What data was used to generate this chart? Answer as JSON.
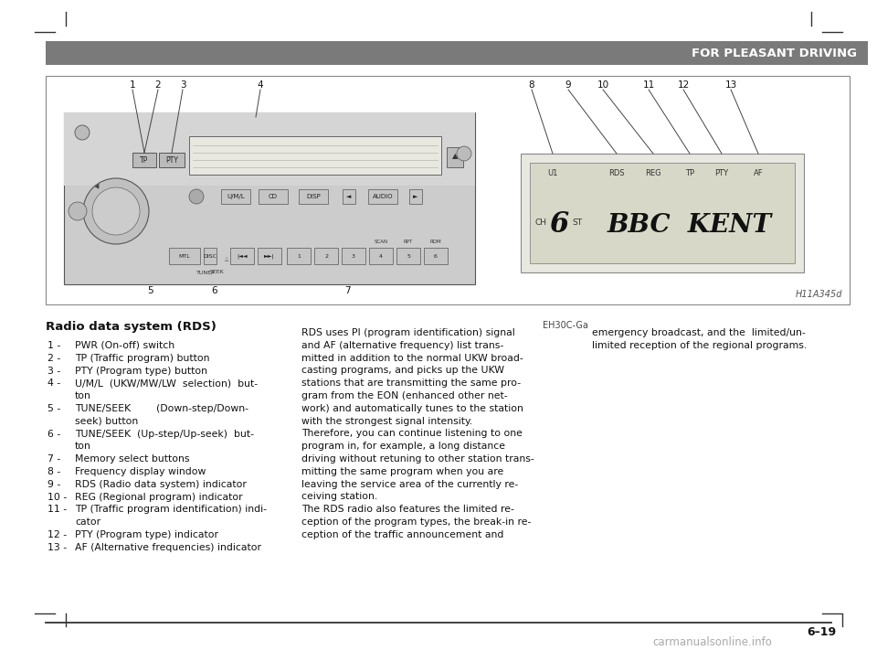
{
  "page_bg": "#ffffff",
  "header_bar_color": "#7a7a7a",
  "header_text": "FOR PLEASANT DRIVING",
  "header_text_color": "#ffffff",
  "page_number": "6–19",
  "figure_label": "H11A345d",
  "ref_label": "EH30C-Ga",
  "section_title": "Radio data system (RDS)",
  "watermark": "carmanualsonline.info"
}
